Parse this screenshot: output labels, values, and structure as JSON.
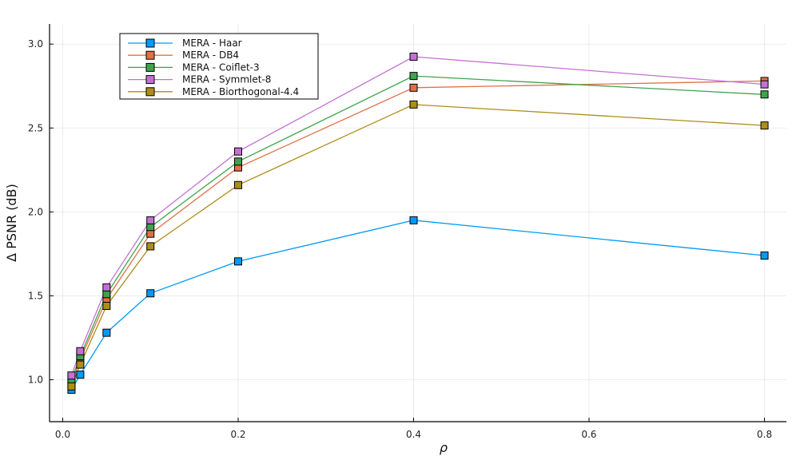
{
  "chart_data": {
    "type": "line",
    "title": "",
    "xlabel": "ρ",
    "ylabel": "Δ PSNR (dB)",
    "xlim": [
      -0.015,
      0.825
    ],
    "ylim": [
      0.75,
      3.12
    ],
    "x_ticks": [
      0.0,
      0.2,
      0.4,
      0.6,
      0.8
    ],
    "x_tick_labels": [
      "0.0",
      "0.2",
      "0.4",
      "0.6",
      "0.8"
    ],
    "y_ticks": [
      1.0,
      1.5,
      2.0,
      2.5,
      3.0
    ],
    "y_tick_labels": [
      "1.0",
      "1.5",
      "2.0",
      "2.5",
      "3.0"
    ],
    "grid": true,
    "legend_position": "top-left",
    "marker": "square",
    "x": [
      0.01,
      0.02,
      0.05,
      0.1,
      0.2,
      0.4,
      0.8
    ],
    "series": [
      {
        "name": "MERA - Haar",
        "color": "#009af9",
        "values": [
          0.94,
          1.03,
          1.28,
          1.515,
          1.705,
          1.95,
          1.74
        ]
      },
      {
        "name": "MERA - DB4",
        "color": "#e26f46",
        "values": [
          0.98,
          1.12,
          1.48,
          1.87,
          2.265,
          2.74,
          2.78
        ]
      },
      {
        "name": "MERA - Coiflet-3",
        "color": "#3da44d",
        "values": [
          1.0,
          1.14,
          1.51,
          1.91,
          2.3,
          2.81,
          2.7
        ]
      },
      {
        "name": "MERA - Symmlet-8",
        "color": "#c271d2",
        "values": [
          1.025,
          1.17,
          1.55,
          1.95,
          2.36,
          2.925,
          2.76
        ]
      },
      {
        "name": "MERA - Biorthogonal-4.4",
        "color": "#ac8e18",
        "values": [
          0.96,
          1.09,
          1.44,
          1.795,
          2.16,
          2.64,
          2.515
        ]
      }
    ]
  }
}
